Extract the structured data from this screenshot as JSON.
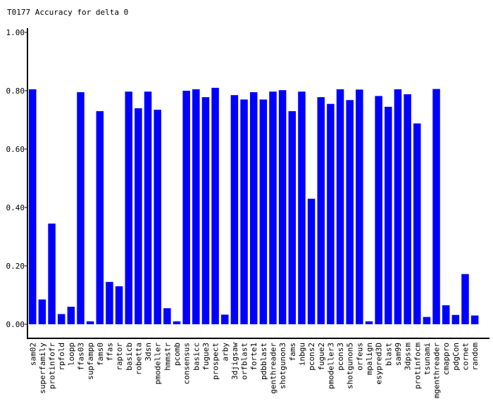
{
  "chart_data": {
    "type": "bar",
    "title": "T0177 Accuracy for delta 0",
    "xlabel": "",
    "ylabel": "",
    "ylim": [
      0,
      1.0
    ],
    "yticks": [
      "0.00",
      "0.20",
      "0.40",
      "0.60",
      "0.80",
      "1.00"
    ],
    "bar_color": "#0000ff",
    "categories": [
      "sam02",
      "superfamily",
      "protinfofr",
      "rpfold",
      "loopp",
      "ffas03",
      "supfampp",
      "fams0",
      "ffas",
      "raptor",
      "basicb",
      "robetta",
      "3dsn",
      "pmodeller",
      "hmmstr",
      "pcomb",
      "consensus",
      "basicc",
      "fugue3",
      "prospect",
      "arby",
      "3djigsaw",
      "orfblast",
      "forte1",
      "pdbblast",
      "genthreader",
      "shotgunon3",
      "fams",
      "inbgu",
      "pcons2",
      "fugue2",
      "pmodeller3",
      "pcons3",
      "shotgunon5",
      "orfeus",
      "mpalign",
      "esypred3D",
      "blast",
      "sam99",
      "3dpssm",
      "protinfocm",
      "tsunami",
      "mgenthreader",
      "cmappro",
      "pdgCon",
      "cornet",
      "random"
    ],
    "values": [
      0.805,
      0.085,
      0.345,
      0.035,
      0.06,
      0.795,
      0.01,
      0.73,
      0.145,
      0.13,
      0.797,
      0.74,
      0.797,
      0.735,
      0.055,
      0.01,
      0.8,
      0.805,
      0.778,
      0.81,
      0.033,
      0.785,
      0.77,
      0.795,
      0.77,
      0.797,
      0.802,
      0.73,
      0.797,
      0.43,
      0.778,
      0.755,
      0.805,
      0.768,
      0.804,
      0.01,
      0.782,
      0.745,
      0.805,
      0.788,
      0.688,
      0.025,
      0.806,
      0.065,
      0.032,
      0.172,
      0.03
    ]
  }
}
